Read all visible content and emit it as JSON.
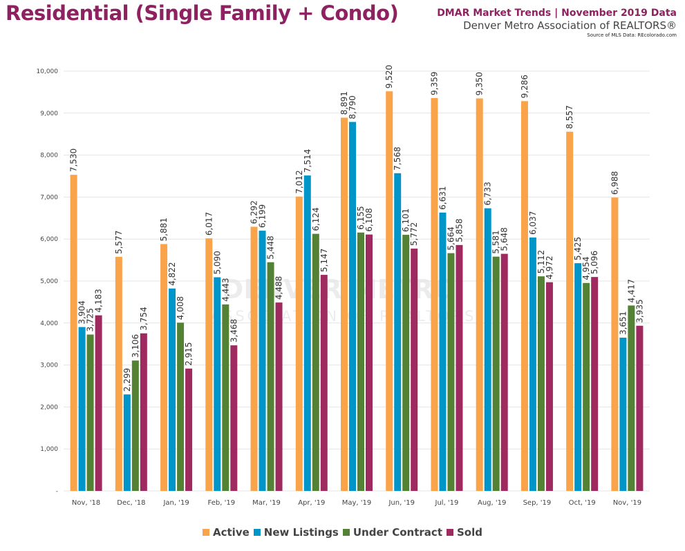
{
  "header": {
    "title": "Residential (Single Family + Condo)",
    "subtitle": "DMAR Market Trends | November 2019 Data",
    "org": "Denver Metro Association of REALTORS®",
    "source": "Source of MLS Data: REcolorado.com"
  },
  "watermark": {
    "line1": "DENVER METRO",
    "line2": "ASSOCIATION OF REALTORS"
  },
  "chart_data": {
    "type": "bar",
    "title": "",
    "xlabel": "",
    "ylabel": "",
    "ylim": [
      0,
      10000
    ],
    "yticks": [
      0,
      1000,
      2000,
      3000,
      4000,
      5000,
      6000,
      7000,
      8000,
      9000,
      10000
    ],
    "ytick_labels": [
      "-",
      "1,000",
      "2,000",
      "3,000",
      "4,000",
      "5,000",
      "6,000",
      "7,000",
      "8,000",
      "9,000",
      "10,000"
    ],
    "grid": true,
    "legend": "bottom",
    "categories": [
      "Nov, '18",
      "Dec, '18",
      "Jan, '19",
      "Feb, '19",
      "Mar, '19",
      "Apr, '19",
      "May, '19",
      "Jun, '19",
      "Jul, '19",
      "Aug, '19",
      "Sep, '19",
      "Oct, '19",
      "Nov, '19"
    ],
    "series": [
      {
        "name": "Active",
        "color": "#f9a34a",
        "values": [
          7530,
          5577,
          5881,
          6017,
          6292,
          7012,
          8891,
          9520,
          9359,
          9350,
          9286,
          8557,
          6988
        ]
      },
      {
        "name": "New Listings",
        "color": "#0095c9",
        "values": [
          3904,
          2299,
          4822,
          5090,
          6199,
          7514,
          8790,
          7568,
          6631,
          6733,
          6037,
          5425,
          3651
        ]
      },
      {
        "name": "Under Contract",
        "color": "#548235",
        "values": [
          3725,
          3106,
          4008,
          4443,
          5448,
          6124,
          6155,
          6101,
          5664,
          5581,
          5112,
          4954,
          4417
        ]
      },
      {
        "name": "Sold",
        "color": "#9e2a5f",
        "values": [
          4183,
          3754,
          2915,
          3468,
          4488,
          5147,
          6108,
          5772,
          5858,
          5648,
          4972,
          5096,
          3935
        ]
      }
    ]
  }
}
